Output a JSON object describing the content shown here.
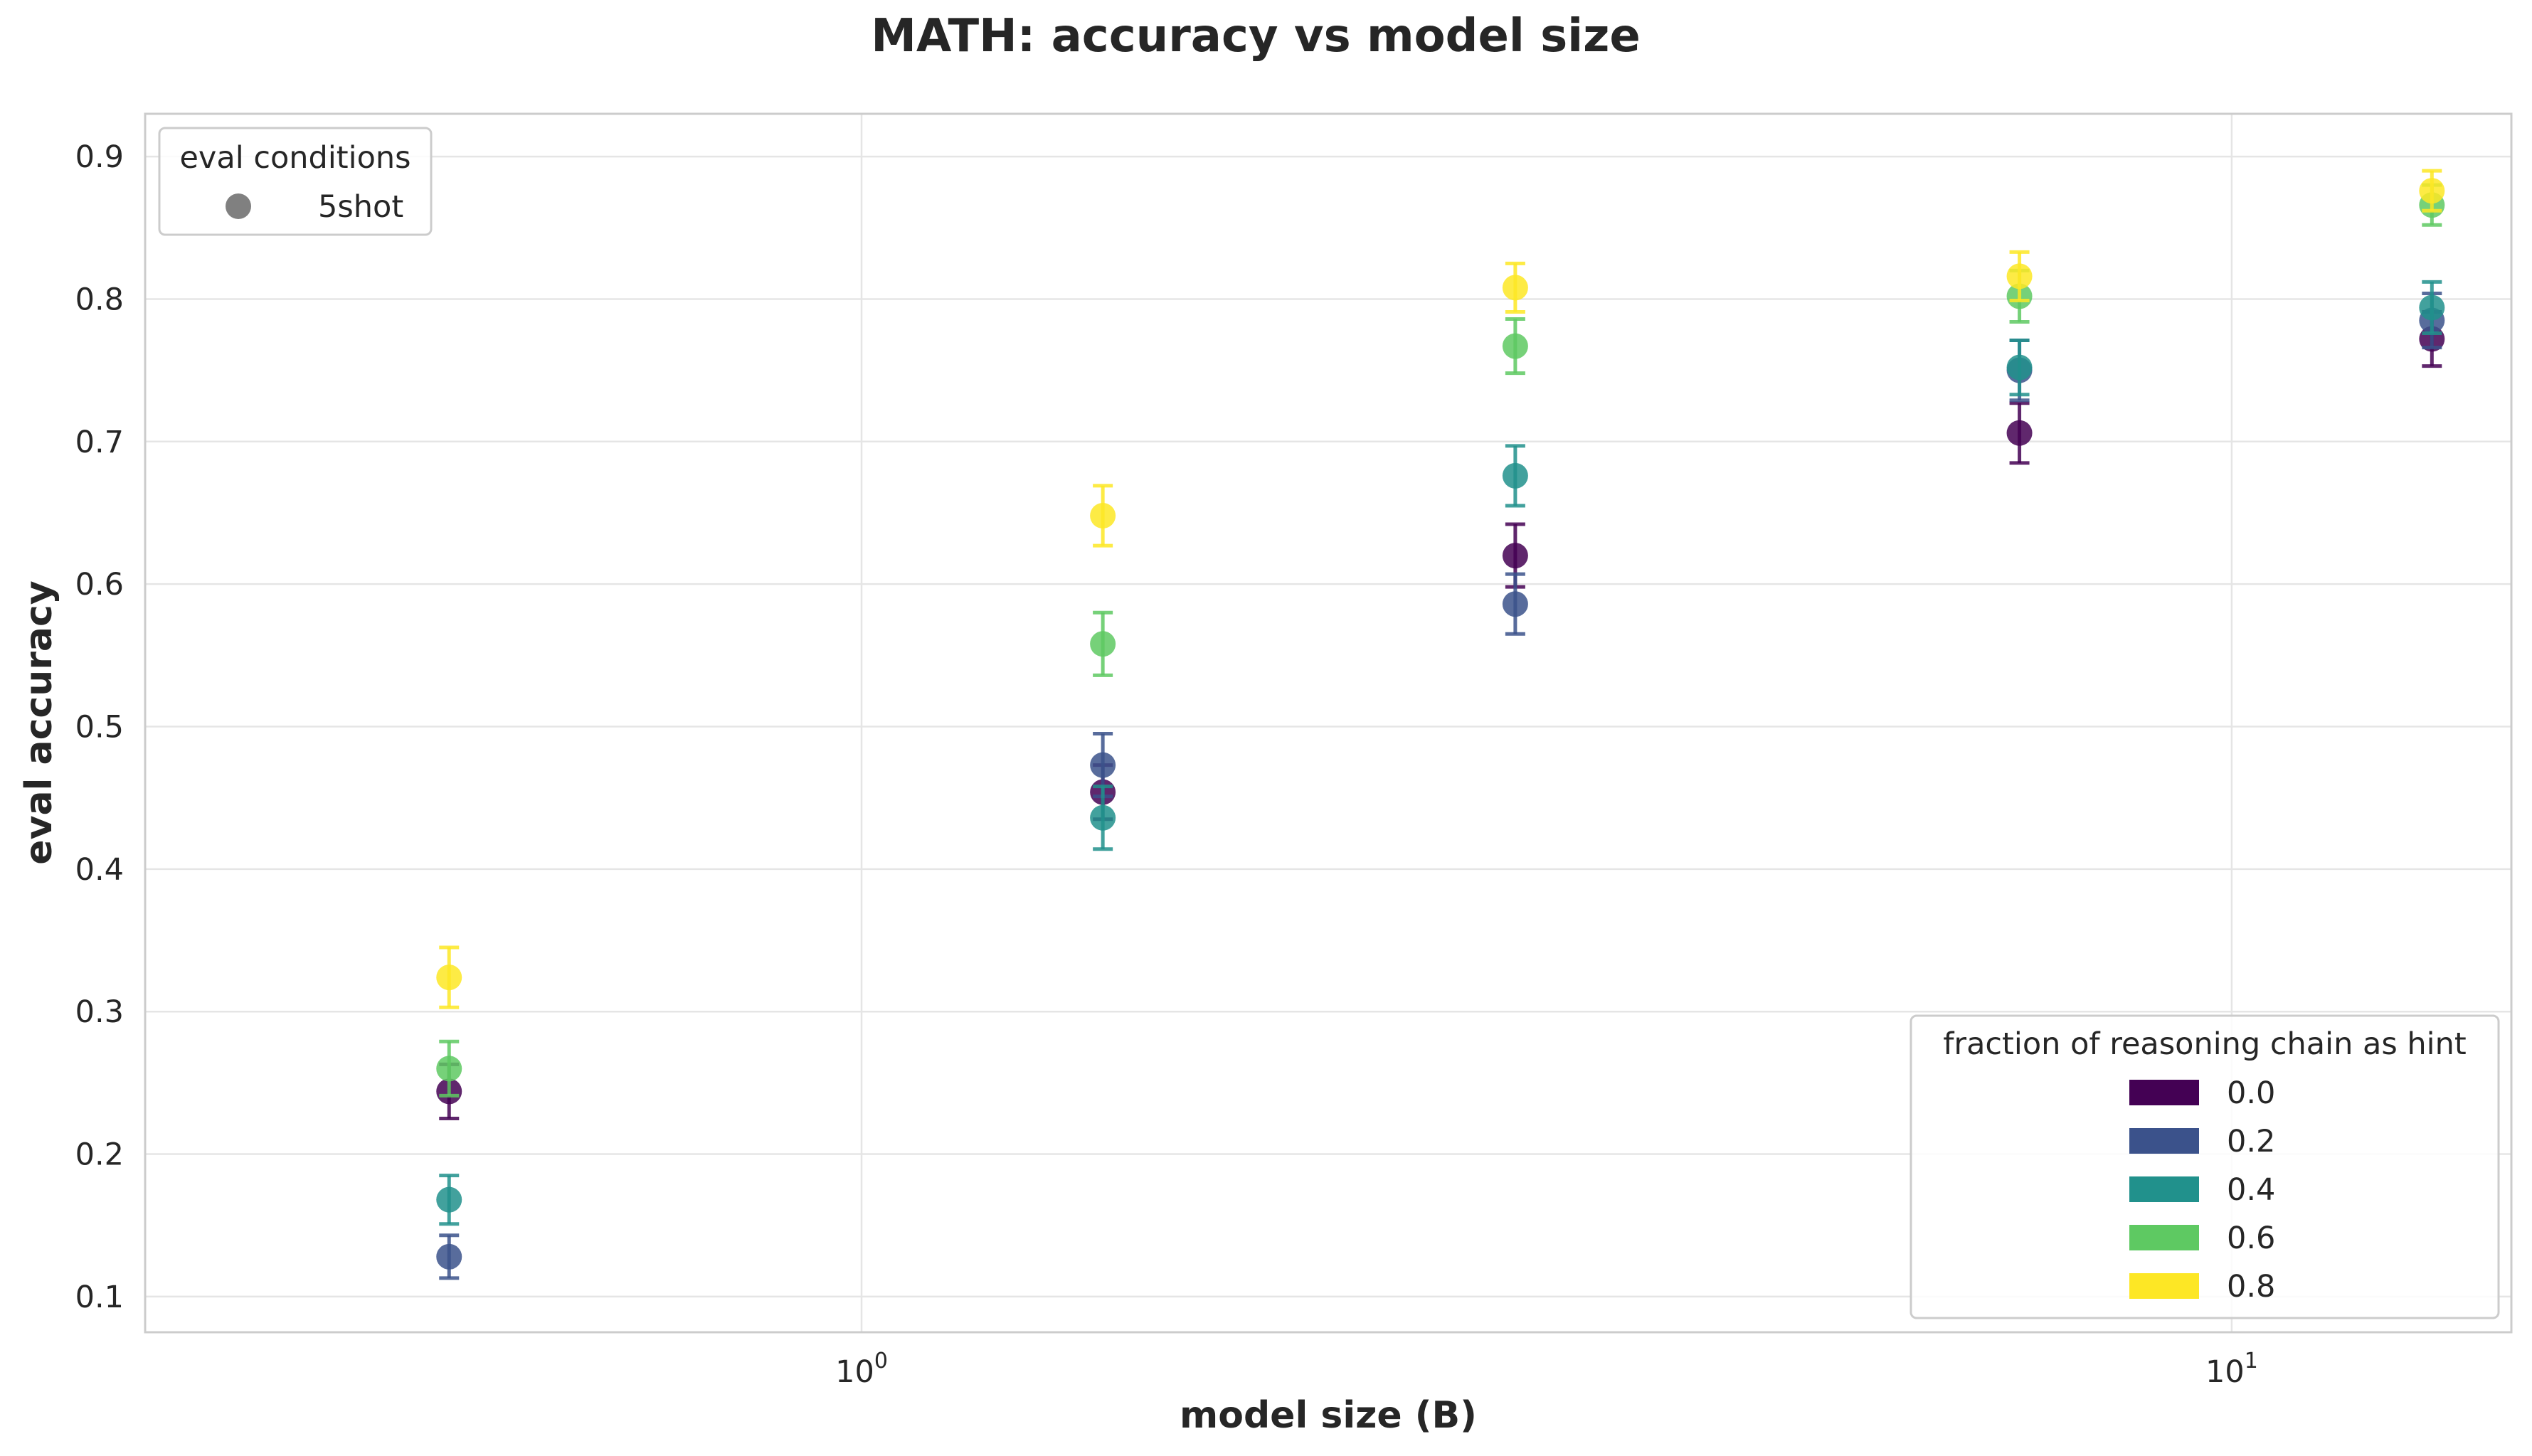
{
  "chart_data": {
    "type": "scatter",
    "title": "MATH: accuracy vs model size",
    "xlabel": "model size (B)",
    "ylabel": "eval accuracy",
    "xscale": "log",
    "xlim": [
      0.3,
      16
    ],
    "ylim": [
      0.075,
      0.93
    ],
    "x_ticks": [
      {
        "value": 1,
        "base": "10",
        "exp": "0"
      },
      {
        "value": 10,
        "base": "10",
        "exp": "1"
      }
    ],
    "y_ticks": [
      {
        "value": 0.1,
        "label": "0.1"
      },
      {
        "value": 0.2,
        "label": "0.2"
      },
      {
        "value": 0.3,
        "label": "0.3"
      },
      {
        "value": 0.4,
        "label": "0.4"
      },
      {
        "value": 0.5,
        "label": "0.5"
      },
      {
        "value": 0.6,
        "label": "0.6"
      },
      {
        "value": 0.7,
        "label": "0.7"
      },
      {
        "value": 0.8,
        "label": "0.8"
      },
      {
        "value": 0.9,
        "label": "0.9"
      }
    ],
    "grid": true,
    "x": [
      0.5,
      1.5,
      3.0,
      7.0,
      14.0
    ],
    "series": [
      {
        "name": "0.0",
        "color": "#440154",
        "values": [
          0.244,
          0.454,
          0.62,
          0.706,
          0.772
        ],
        "error": [
          0.019,
          0.019,
          0.022,
          0.021,
          0.019
        ]
      },
      {
        "name": "0.2",
        "color": "#3b528b",
        "values": [
          0.128,
          0.473,
          0.586,
          0.75,
          0.785
        ],
        "error": [
          0.015,
          0.022,
          0.021,
          0.021,
          0.019
        ]
      },
      {
        "name": "0.4",
        "color": "#21918c",
        "values": [
          0.168,
          0.436,
          0.676,
          0.752,
          0.794
        ],
        "error": [
          0.017,
          0.022,
          0.021,
          0.019,
          0.018
        ]
      },
      {
        "name": "0.6",
        "color": "#5ec962",
        "values": [
          0.26,
          0.558,
          0.767,
          0.802,
          0.866
        ],
        "error": [
          0.019,
          0.022,
          0.019,
          0.018,
          0.014
        ]
      },
      {
        "name": "0.8",
        "color": "#fde725",
        "values": [
          0.324,
          0.648,
          0.808,
          0.816,
          0.876
        ],
        "error": [
          0.021,
          0.021,
          0.017,
          0.017,
          0.014
        ]
      }
    ],
    "legend_hint": {
      "title": "fraction of reasoning chain as hint",
      "placement": "lower-right"
    },
    "legend_conditions": {
      "title": "eval conditions",
      "placement": "upper-left",
      "items": [
        {
          "label": "5shot",
          "color": "#808080"
        }
      ]
    }
  }
}
